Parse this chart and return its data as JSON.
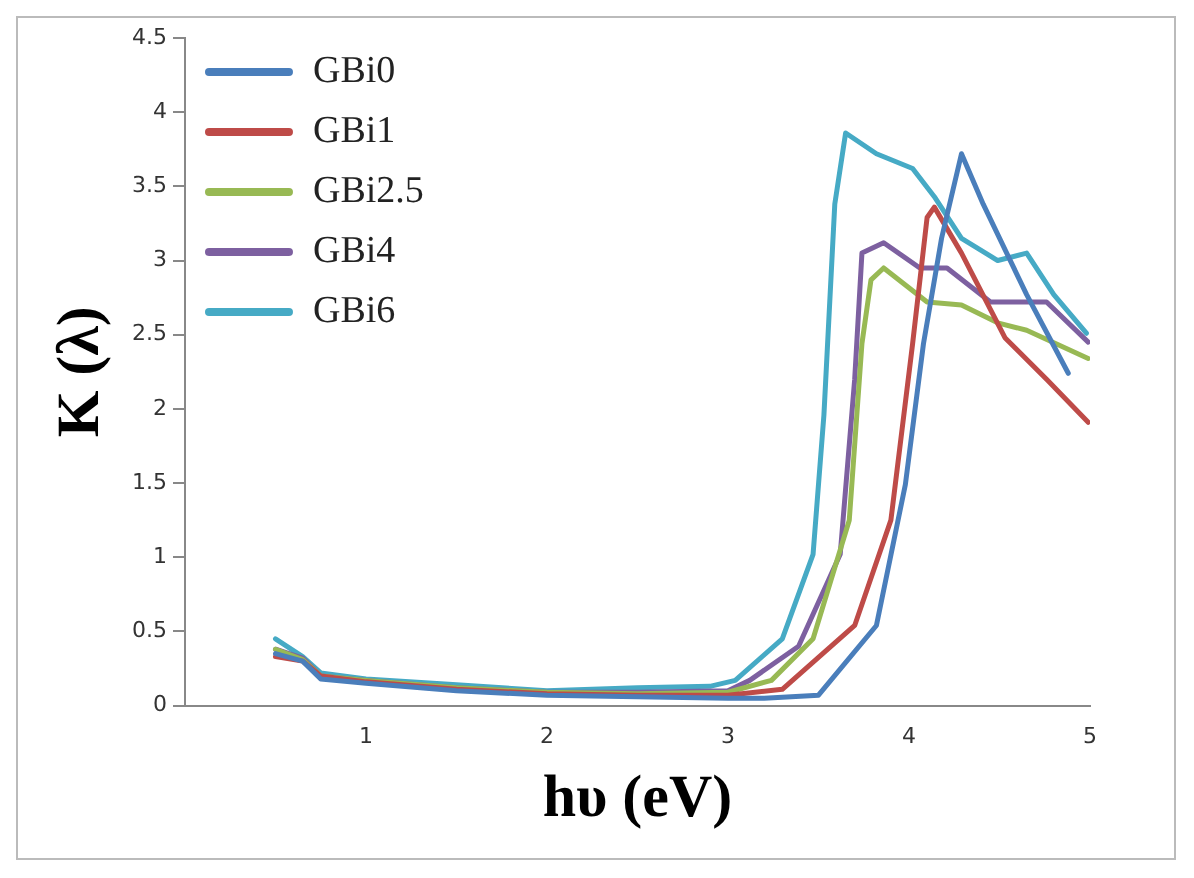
{
  "chart_data": {
    "type": "line",
    "xlabel": "hυ (eV)",
    "ylabel": "K (λ)",
    "xlim": [
      0,
      5
    ],
    "xticks": [
      1,
      2,
      3,
      4,
      5
    ],
    "ylim": [
      0,
      4.5
    ],
    "yticks": [
      0,
      0.5,
      1,
      1.5,
      2,
      2.5,
      3,
      3.5,
      4,
      4.5
    ],
    "grid": false,
    "legend": "top left",
    "marker": "none",
    "line_style": "solid",
    "series": [
      {
        "name": "GBi0",
        "color": "#4a7ebb",
        "x": [
          0.5,
          0.65,
          0.75,
          1,
          1.5,
          2,
          2.5,
          3,
          3.2,
          3.5,
          3.82,
          3.98,
          4.08,
          4.18,
          4.29,
          4.41,
          4.65,
          4.88
        ],
        "values": [
          0.35,
          0.3,
          0.18,
          0.15,
          0.1,
          0.07,
          0.06,
          0.05,
          0.05,
          0.07,
          0.54,
          1.49,
          2.44,
          3.15,
          3.72,
          3.38,
          2.77,
          2.24
        ]
      },
      {
        "name": "GBi1",
        "color": "#be4b48",
        "x": [
          0.5,
          0.65,
          0.75,
          1,
          1.5,
          2,
          2.5,
          3,
          3.3,
          3.7,
          3.9,
          4.02,
          4.1,
          4.14,
          4.29,
          4.53,
          4.76,
          4.99
        ],
        "values": [
          0.33,
          0.3,
          0.2,
          0.16,
          0.11,
          0.08,
          0.07,
          0.07,
          0.11,
          0.54,
          1.25,
          2.44,
          3.29,
          3.36,
          3.05,
          2.48,
          2.2,
          1.91
        ]
      },
      {
        "name": "GBi2.5",
        "color": "#98b954",
        "x": [
          0.5,
          0.65,
          0.75,
          1,
          1.5,
          2,
          2.5,
          3,
          3.24,
          3.47,
          3.67,
          3.74,
          3.79,
          3.86,
          4.1,
          4.29,
          4.49,
          4.65,
          4.99
        ],
        "values": [
          0.38,
          0.31,
          0.2,
          0.17,
          0.12,
          0.09,
          0.08,
          0.09,
          0.17,
          0.45,
          1.25,
          2.44,
          2.87,
          2.95,
          2.72,
          2.7,
          2.58,
          2.53,
          2.34
        ]
      },
      {
        "name": "GBi4",
        "color": "#7d60a0",
        "x": [
          0.5,
          0.65,
          0.75,
          1,
          1.5,
          2,
          2.5,
          3,
          3.12,
          3.39,
          3.62,
          3.7,
          3.74,
          3.86,
          4.06,
          4.21,
          4.45,
          4.61,
          4.76,
          4.99
        ],
        "values": [
          0.38,
          0.32,
          0.2,
          0.17,
          0.12,
          0.09,
          0.09,
          0.1,
          0.17,
          0.4,
          1.02,
          2.2,
          3.05,
          3.12,
          2.95,
          2.95,
          2.72,
          2.72,
          2.72,
          2.45
        ]
      },
      {
        "name": "GBi6",
        "color": "#46aac5",
        "x": [
          0.5,
          0.65,
          0.75,
          1,
          1.5,
          2,
          2.5,
          2.9,
          3.04,
          3.3,
          3.47,
          3.53,
          3.59,
          3.65,
          3.82,
          4.02,
          4.14,
          4.29,
          4.49,
          4.65,
          4.8,
          4.98
        ],
        "values": [
          0.45,
          0.33,
          0.22,
          0.18,
          0.14,
          0.1,
          0.12,
          0.13,
          0.17,
          0.45,
          1.02,
          1.96,
          3.38,
          3.86,
          3.72,
          3.62,
          3.43,
          3.15,
          3,
          3.05,
          2.77,
          2.51
        ]
      }
    ]
  }
}
